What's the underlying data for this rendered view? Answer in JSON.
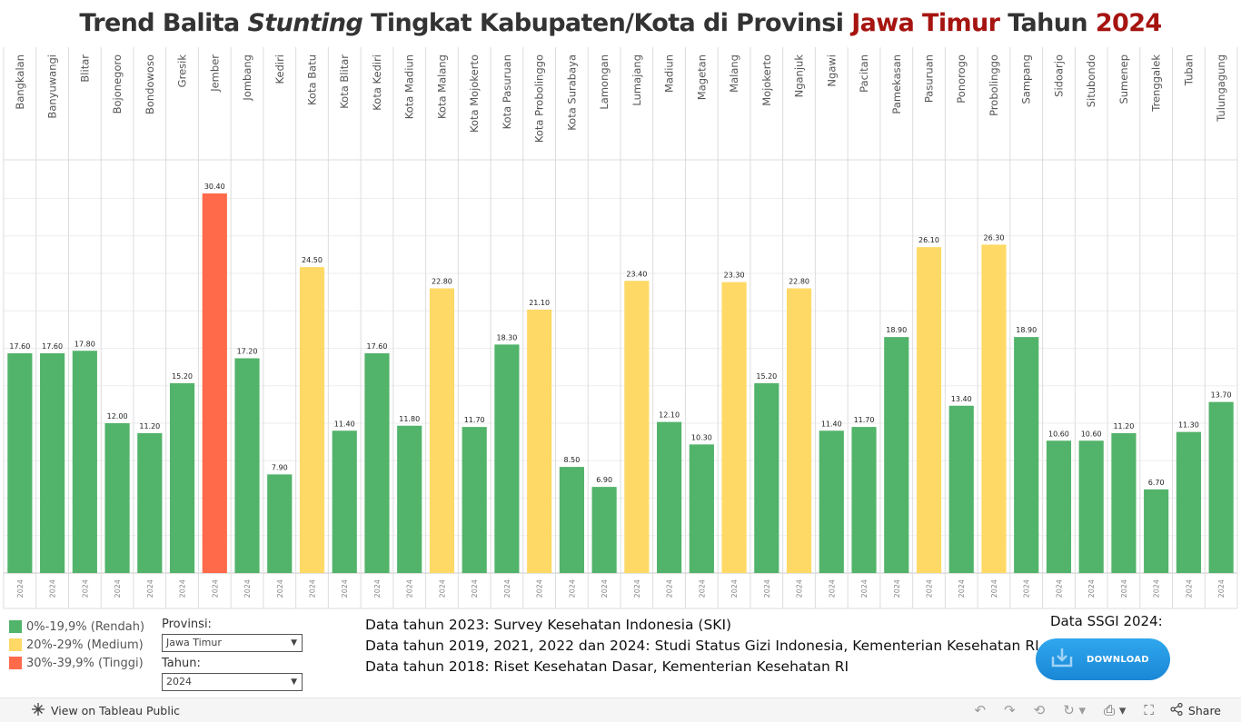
{
  "title": {
    "part1": "Trend Balita ",
    "italic": "Stunting",
    "part2": " Tingkat Kabupaten/Kota di Provinsi ",
    "province": "Jawa Timur",
    "part3": " Tahun ",
    "year": "2024"
  },
  "chart_data": {
    "type": "bar",
    "title": "Trend Balita Stunting Tingkat Kabupaten/Kota di Provinsi Jawa Timur Tahun 2024",
    "xlabel": "",
    "ylabel": "",
    "ylim": [
      0,
      33
    ],
    "categories": [
      "Bangkalan",
      "Banyuwangi",
      "Blitar",
      "Bojonegoro",
      "Bondowoso",
      "Gresik",
      "Jember",
      "Jombang",
      "Kediri",
      "Kota Batu",
      "Kota Blitar",
      "Kota Kediri",
      "Kota Madiun",
      "Kota Malang",
      "Kota Mojokerto",
      "Kota Pasuruan",
      "Kota Probolinggo",
      "Kota Surabaya",
      "Lamongan",
      "Lumajang",
      "Madiun",
      "Magetan",
      "Malang",
      "Mojokerto",
      "Nganjuk",
      "Ngawi",
      "Pacitan",
      "Pamekasan",
      "Pasuruan",
      "Ponorogo",
      "Probolinggo",
      "Sampang",
      "Sidoarjo",
      "Situbondo",
      "Sumenep",
      "Trenggalek",
      "Tuban",
      "Tulungagung"
    ],
    "year_label": "2024",
    "values": [
      17.6,
      17.6,
      17.8,
      12.0,
      11.2,
      15.2,
      30.4,
      17.2,
      7.9,
      24.5,
      11.4,
      17.6,
      11.8,
      22.8,
      11.7,
      18.3,
      21.1,
      8.5,
      6.9,
      23.4,
      12.1,
      10.3,
      23.3,
      15.2,
      22.8,
      11.4,
      11.7,
      18.9,
      26.1,
      13.4,
      26.3,
      18.9,
      10.6,
      10.6,
      11.2,
      6.7,
      11.3,
      13.7
    ],
    "value_labels": [
      "17.60",
      "17.60",
      "17.80",
      "12.00",
      "11.20",
      "15.20",
      "30.40",
      "17.20",
      "7.90",
      "24.50",
      "11.40",
      "17.60",
      "11.80",
      "22.80",
      "11.70",
      "18.30",
      "21.10",
      "8.50",
      "6.90",
      "23.40",
      "12.10",
      "10.30",
      "23.30",
      "15.20",
      "22.80",
      "11.40",
      "11.70",
      "18.90",
      "26.10",
      "13.40",
      "26.30",
      "18.90",
      "10.60",
      "10.60",
      "11.20",
      "6.70",
      "11.30",
      "13.70"
    ],
    "color_bins": [
      {
        "min": 0,
        "max": 20,
        "color": "#52b36a",
        "label": "0%-19,9% (Rendah)"
      },
      {
        "min": 20,
        "max": 30,
        "color": "#ffd966",
        "label": "20%-29% (Medium)"
      },
      {
        "min": 30,
        "max": 40,
        "color": "#ff6a4a",
        "label": "30%-39,9% (Tinggi)"
      }
    ],
    "gridlines": [
      3,
      6,
      9,
      12,
      15,
      18,
      21,
      24,
      27,
      30
    ]
  },
  "legend": [
    {
      "label": "0%-19,9% (Rendah)",
      "color": "#52b36a"
    },
    {
      "label": "20%-29% (Medium)",
      "color": "#ffd966"
    },
    {
      "label": "30%-39,9% (Tinggi)",
      "color": "#ff6a4a"
    }
  ],
  "filters": {
    "province_label": "Provinsi:",
    "province_value": "Jawa Timur",
    "year_label": "Tahun:",
    "year_value": "2024"
  },
  "notes": [
    "Data tahun 2023: Survey Kesehatan Indonesia (SKI)",
    "Data tahun 2019, 2021, 2022 dan 2024: Studi Status  Gizi Indonesia, Kementerian Kesehatan RI",
    "Data tahun 2018: Riset Kesehatan Dasar, Kementerian Kesehatan RI"
  ],
  "ssgi": {
    "label": "Data SSGI 2024:",
    "button_label": "DOWNLOAD"
  },
  "toolbar": {
    "view_label": "View on Tableau Public",
    "share_label": "Share"
  }
}
